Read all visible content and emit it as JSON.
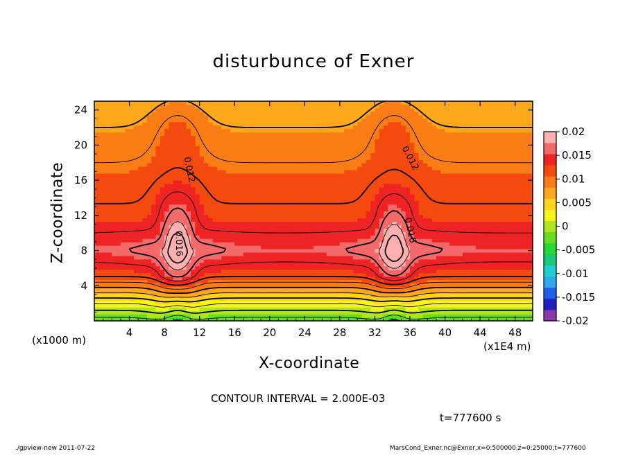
{
  "title": "disturbunce of Exner",
  "footer": {
    "left": "./gpview-new  2011-07-22",
    "right": "MarsCond_Exner.nc@Exner,x=0:500000,z=0:25000,t=777600"
  },
  "annotations": {
    "contour_interval": "CONTOUR INTERVAL = 2.000E-03",
    "time": "t=777600 s",
    "x_unit_left": "(x1000 m)",
    "x_unit_right": "(x1E4 m)"
  },
  "chart_data": {
    "type": "heatmap",
    "title": "disturbunce of Exner",
    "xlabel": "X-coordinate",
    "ylabel": "Z-coordinate",
    "xlim": [
      0,
      50
    ],
    "ylim": [
      0,
      25
    ],
    "x_ticks": [
      4,
      8,
      12,
      16,
      20,
      24,
      28,
      32,
      36,
      40,
      44,
      48
    ],
    "y_ticks": [
      4,
      8,
      12,
      16,
      20,
      24
    ],
    "colorbar": {
      "ticks": [
        0.02,
        0.015,
        0.01,
        0.005,
        0,
        -0.005,
        -0.01,
        -0.015,
        -0.02
      ],
      "range": [
        -0.02,
        0.02
      ],
      "colors": [
        "#8b3aa8",
        "#2020c0",
        "#1e5fe8",
        "#2ea8f0",
        "#20d0d0",
        "#1ec87a",
        "#28d838",
        "#66dd22",
        "#b2e61c",
        "#f6f41c",
        "#fcd41a",
        "#fca81a",
        "#fa7c14",
        "#f44a0f",
        "#ee2424",
        "#f46a6a",
        "#fcb0b0"
      ]
    },
    "contour_interval": 0.002,
    "contour_labels": [
      {
        "text": "0.012",
        "x": 10.8,
        "z": 17.2,
        "rotation": 78
      },
      {
        "text": "0.016",
        "x": 9.6,
        "z": 8.8,
        "rotation": 88
      },
      {
        "text": "0.012",
        "x": 36.0,
        "z": 18.5,
        "rotation": 62
      },
      {
        "text": "0.016",
        "x": 36.0,
        "z": 10.3,
        "rotation": 78
      }
    ],
    "field_features": {
      "vertical_gradient": [
        [
          0,
          -0.003
        ],
        [
          2,
          0.002
        ],
        [
          5,
          0.012
        ],
        [
          8,
          0.0155
        ],
        [
          12,
          0.0125
        ],
        [
          16,
          0.011
        ],
        [
          20,
          0.009
        ],
        [
          24,
          0.007
        ],
        [
          25,
          0.0065
        ]
      ],
      "peaks": [
        {
          "x": 9.5,
          "z": 8.5,
          "amplitude": 0.006
        },
        {
          "x": 34.2,
          "z": 8.5,
          "amplitude": 0.0055
        }
      ]
    },
    "time": "t=777600 s"
  }
}
